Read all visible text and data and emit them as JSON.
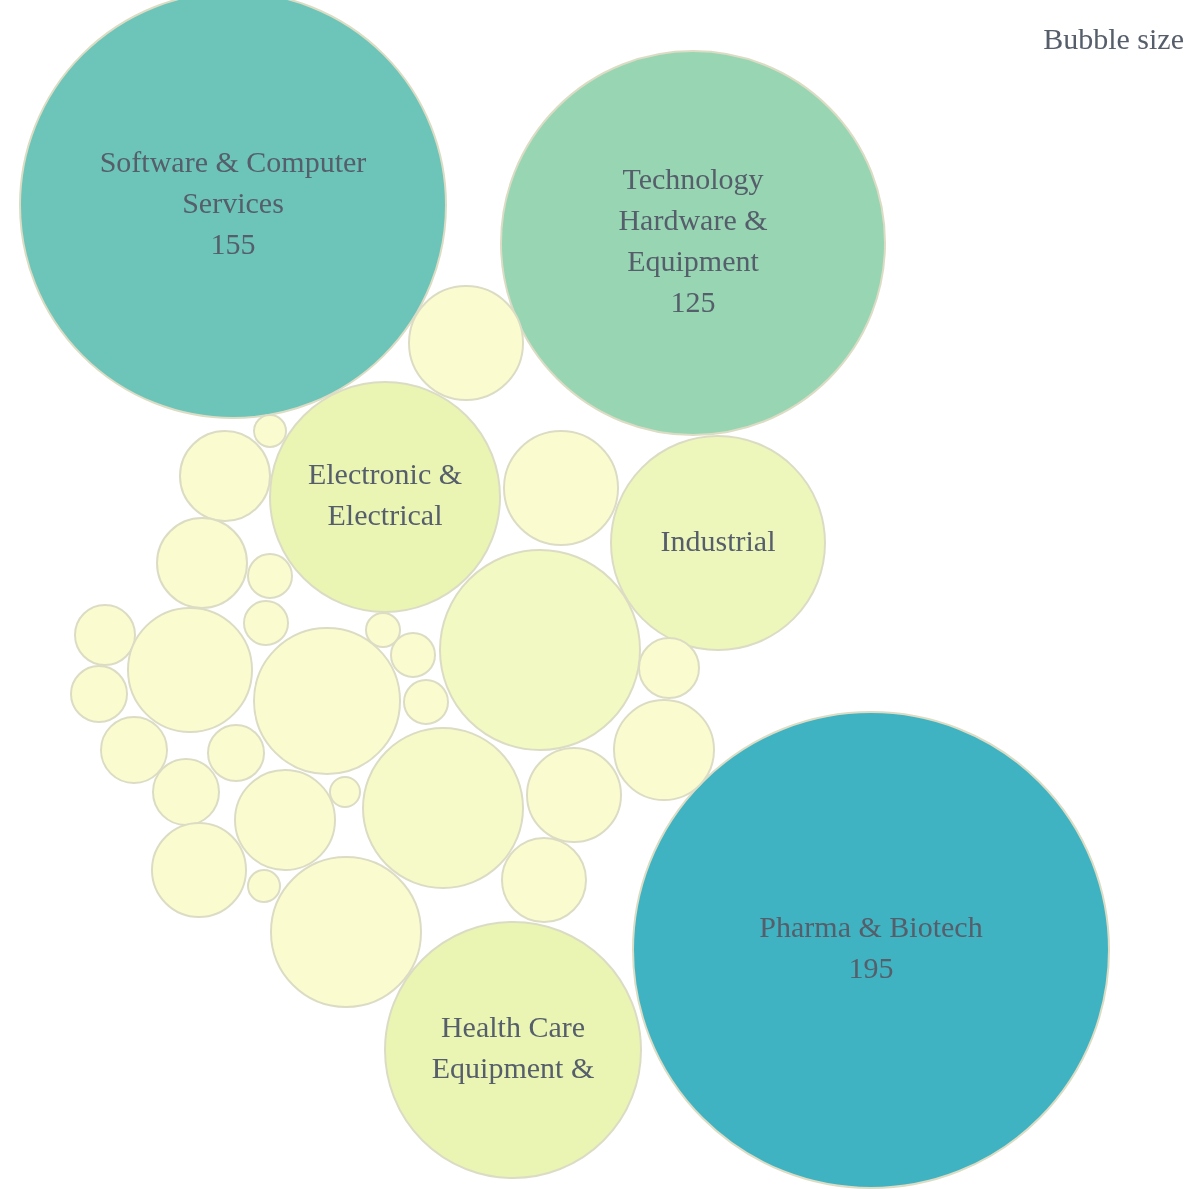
{
  "chart_data": {
    "type": "other",
    "legend_title": "Bubble size",
    "data_labels": true,
    "categories": [
      "Software & Computer Services",
      "Technology Hardware & Equipment",
      "Pharma & Biotech",
      "Electronic & Electrical",
      "Industrial",
      "Health Care Equipment &",
      null,
      null,
      null,
      null,
      null,
      null,
      null,
      null,
      null,
      null,
      null,
      null,
      null,
      null,
      null,
      null,
      null,
      null,
      null,
      null,
      null,
      null,
      null,
      null,
      null,
      null,
      null,
      null
    ],
    "values": [
      155,
      125,
      195,
      null,
      null,
      null,
      null,
      null,
      null,
      null,
      null,
      null,
      null,
      null,
      null,
      null,
      null,
      null,
      null,
      null,
      null,
      null,
      null,
      null,
      null,
      null,
      null,
      null,
      null,
      null,
      null,
      null,
      null,
      null
    ],
    "colors": [
      "#6cc5b8",
      "#97d5b3",
      "#40b3c2",
      "#eaf5b4",
      "#eef7bb",
      "#eaf5b4",
      "#fafcd0",
      "#fafcd0",
      "#fafcd0",
      "#fafcd0",
      "#fafcd0",
      "#fafcd0",
      "#fafcd0",
      "#fafcd0",
      "#fafcd0",
      "#fafcd0",
      "#f3f9c2",
      "#fafcd0",
      "#fafcd0",
      "#fafcd0",
      "#fafcd0",
      "#fafcd0",
      "#fafcd0",
      "#fafcd0",
      "#fafcd0",
      "#fafcd0",
      "#fafcd0",
      "#fafcd0",
      "#f6fac8",
      "#fafcd0",
      "#fafcd0",
      "#fafcd0",
      "#fafcd0",
      "#fafcd0"
    ]
  }
}
